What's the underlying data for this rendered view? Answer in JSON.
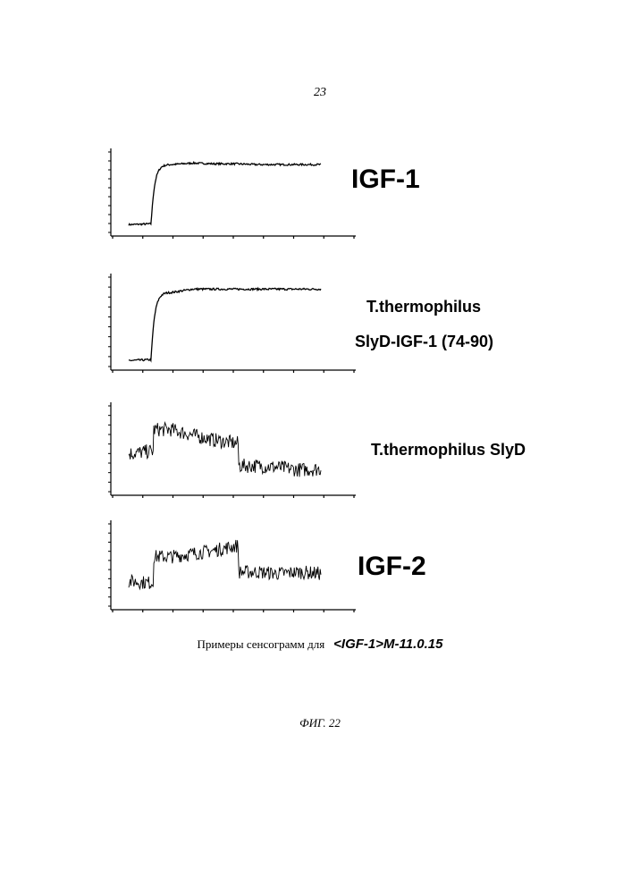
{
  "page_number": "23",
  "panels": [
    {
      "id": "igf1",
      "label_lines": [
        "IGF-1"
      ]
    },
    {
      "id": "slyd-igf1",
      "label_lines": [
        "T.thermophilus",
        "SlyD-IGF-1 (74-90)"
      ]
    },
    {
      "id": "slyd",
      "label_lines": [
        "T.thermophilus SlyD"
      ]
    },
    {
      "id": "igf2",
      "label_lines": [
        "IGF-2"
      ]
    }
  ],
  "caption": {
    "text": "Примеры сенсограмм для",
    "antibody": "<IGF-1>M-11.0.15"
  },
  "figure_label": "ФИГ. 22",
  "chart_data": [
    {
      "type": "line",
      "panel": "IGF-1",
      "shape": "baseline then fast association to stable plateau",
      "series": [
        {
          "x": [
            0,
            1,
            2,
            3,
            4,
            5,
            6,
            7,
            8,
            9
          ],
          "y": [
            0.08,
            0.09,
            0.88,
            0.9,
            0.89,
            0.89,
            0.88,
            0.88,
            0.88,
            0.88
          ]
        }
      ]
    },
    {
      "type": "line",
      "panel": "T.thermophilus SlyD-IGF-1 (74-90)",
      "shape": "baseline then fast association to stable plateau",
      "series": [
        {
          "x": [
            0,
            1,
            2,
            3,
            4,
            5,
            6,
            7,
            8,
            9
          ],
          "y": [
            0.05,
            0.06,
            0.86,
            0.9,
            0.9,
            0.9,
            0.9,
            0.9,
            0.9,
            0.9
          ]
        }
      ]
    },
    {
      "type": "line",
      "panel": "T.thermophilus SlyD",
      "shape": "noisy signal, no specific binding",
      "series": [
        {
          "x": [
            0,
            1,
            2,
            3,
            4,
            5,
            6,
            7,
            8,
            9
          ],
          "y": [
            0.45,
            0.48,
            0.75,
            0.68,
            0.62,
            0.58,
            0.3,
            0.28,
            0.25,
            0.26
          ]
        }
      ]
    },
    {
      "type": "line",
      "panel": "IGF-2",
      "shape": "noisy signal, no specific binding",
      "series": [
        {
          "x": [
            0,
            1,
            2,
            3,
            4,
            5,
            6,
            7,
            8,
            9
          ],
          "y": [
            0.3,
            0.28,
            0.62,
            0.66,
            0.7,
            0.76,
            0.42,
            0.4,
            0.42,
            0.4
          ]
        }
      ]
    }
  ]
}
